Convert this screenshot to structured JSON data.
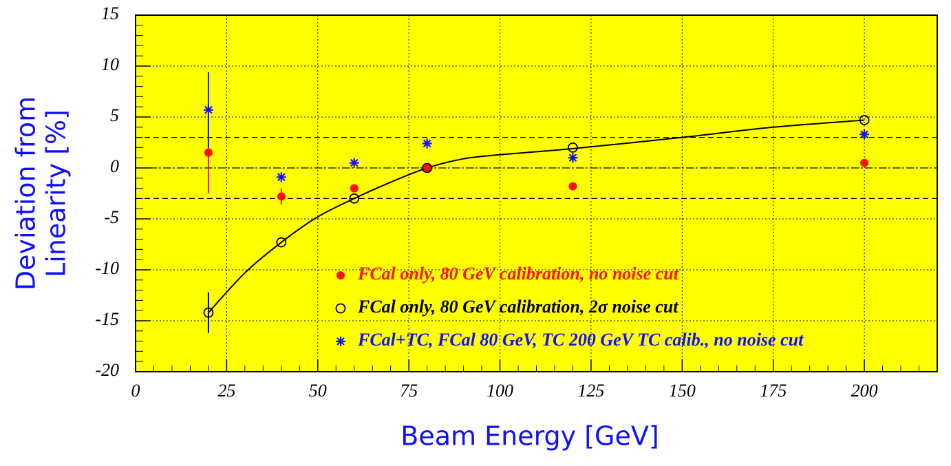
{
  "chart_data": {
    "type": "scatter",
    "xlabel": "Beam Energy [GeV]",
    "ylabel": [
      "Deviation from",
      "Linearity [%]"
    ],
    "xlim": [
      0,
      220
    ],
    "ylim": [
      -20,
      15
    ],
    "xticks": [
      0,
      25,
      50,
      75,
      100,
      125,
      150,
      175,
      200
    ],
    "yticks": [
      -20,
      -15,
      -10,
      -5,
      0,
      5,
      10,
      15
    ],
    "x_minor_step": 5,
    "y_minor_step": 1,
    "grid": true,
    "background": "#ffff00",
    "reference_lines": [
      3,
      0,
      -3
    ],
    "series": [
      {
        "name": "FCal only, 80 GeV calibration, no noise cut",
        "color": "#ff1010",
        "marker": "filled-circle",
        "x": [
          20,
          40,
          60,
          80,
          120,
          200
        ],
        "values": [
          1.5,
          -2.8,
          -2.0,
          0,
          -1.8,
          0.5
        ],
        "errors": [
          4.0,
          0.8,
          null,
          null,
          null,
          null
        ]
      },
      {
        "name": "FCal only, 80 GeV calibration, 2σ noise cut",
        "color": "#000000",
        "marker": "open-circle",
        "x": [
          20,
          40,
          60,
          80,
          120,
          200
        ],
        "values": [
          -14.2,
          -7.3,
          -3.0,
          0,
          2.0,
          4.7
        ],
        "errors": [
          2.0,
          null,
          null,
          null,
          null,
          null
        ]
      },
      {
        "name": "FCal+TC, FCal 80 GeV, TC 200 GeV TC calib., no noise cut",
        "color": "#1010ff",
        "marker": "asterisk",
        "x": [
          20,
          40,
          60,
          80,
          120,
          200
        ],
        "values": [
          5.7,
          -0.9,
          0.5,
          2.4,
          1.0,
          3.3
        ],
        "errors": [
          3.7,
          null,
          null,
          null,
          null,
          null
        ]
      }
    ],
    "fit": {
      "color": "#000000",
      "x": [
        20,
        30,
        40,
        50,
        60,
        70,
        80,
        90,
        100,
        120,
        150,
        175,
        200
      ],
      "values": [
        -14.2,
        -10.3,
        -7.3,
        -4.8,
        -3.0,
        -1.4,
        0,
        0.9,
        1.3,
        1.9,
        3.0,
        4.0,
        4.7
      ]
    }
  }
}
